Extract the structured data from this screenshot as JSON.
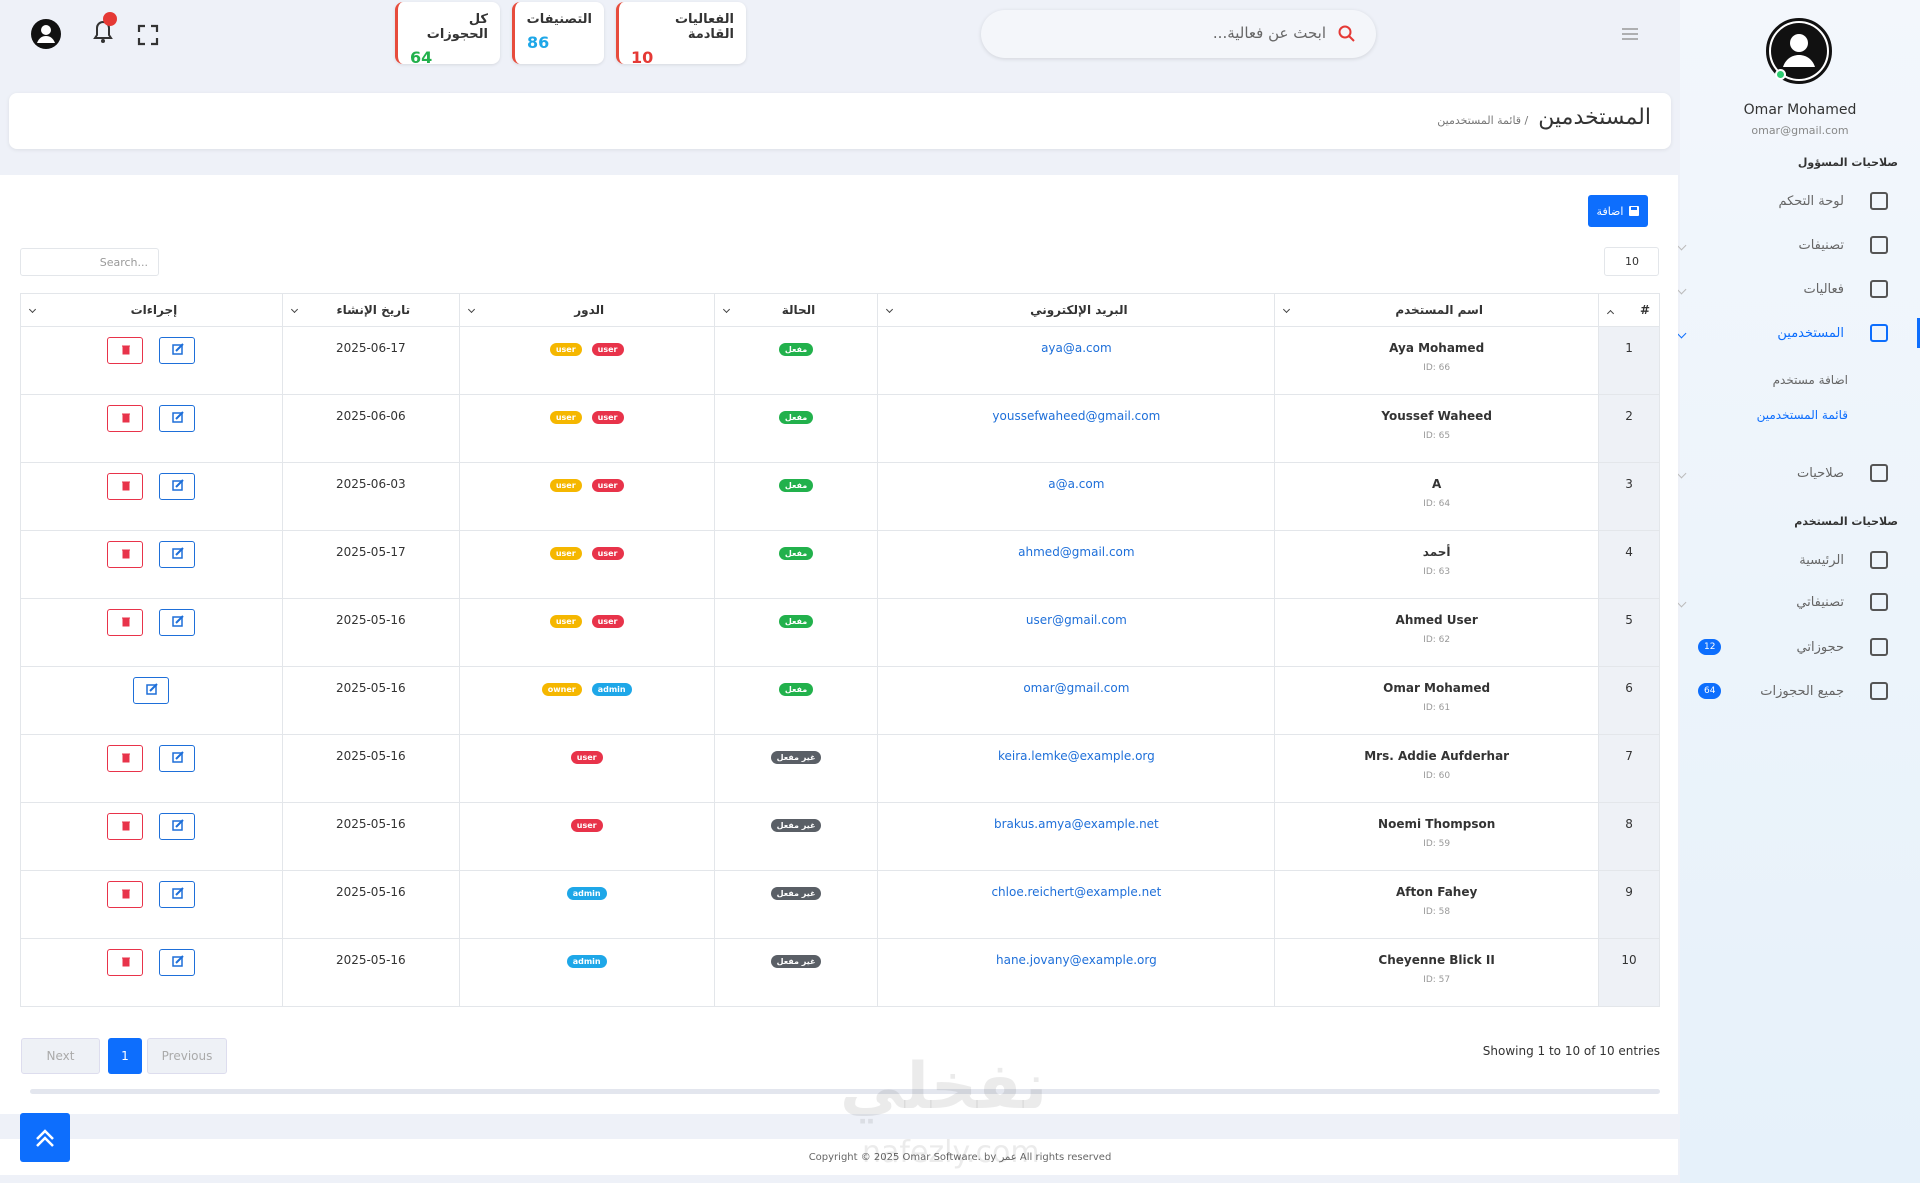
{
  "topbar": {
    "search_placeholder": "ابحث عن فعالية...",
    "stats": [
      {
        "label": "الفعاليات القادمة",
        "value": 10,
        "color": "#e53935"
      },
      {
        "label": "التصنيفات",
        "value": 86,
        "color": "#1ea7e8"
      },
      {
        "label": "كل الحجوزات",
        "value": 64,
        "color": "#22b14c"
      }
    ]
  },
  "header": {
    "title": "المستخدمين",
    "breadcrumb": "/ قائمة المستخدمين"
  },
  "sidebar": {
    "name": "Omar Mohamed",
    "email": "omar@gmail.com",
    "sections": [
      {
        "title": "صلاحيات المسؤول",
        "items": [
          {
            "label": "لوحة التحكم"
          },
          {
            "label": "تصنيفات",
            "chevron": true
          },
          {
            "label": "فعاليات",
            "chevron": true
          },
          {
            "label": "المستخدمين",
            "chevron": true,
            "active": true,
            "children": [
              {
                "label": "اضافة مستخدم"
              },
              {
                "label": "قائمة المستخدمين",
                "active": true
              }
            ]
          },
          {
            "label": "صلاحيات",
            "chevron": true
          }
        ]
      },
      {
        "title": "صلاحيات المستخدم",
        "items": [
          {
            "label": "الرئيسية"
          },
          {
            "label": "تصنيفاتي",
            "chevron": true
          },
          {
            "label": "حجوزاتي",
            "badge": 12
          },
          {
            "label": "جميع الحجوزات",
            "badge": 64
          }
        ]
      }
    ]
  },
  "content": {
    "add_button": "اضافة",
    "page_length": 10,
    "search_placeholder": "Search...",
    "columns": [
      "#",
      "اسم المستخدم",
      "البريد الإلكتروني",
      "الحالة",
      "الدور",
      "تاريخ الإنشاء",
      "إجراءات"
    ],
    "rows": [
      {
        "n": 1,
        "name": "Aya Mohamed",
        "id": "ID: 66",
        "email": "aya@a.com",
        "status": "مفعل",
        "active": true,
        "roles": [
          {
            "label": "user",
            "color": "#e8334a"
          },
          {
            "label": "user",
            "color": "#f5b700"
          }
        ],
        "date": "2025-06-17",
        "delete": true
      },
      {
        "n": 2,
        "name": "Youssef Waheed",
        "id": "ID: 65",
        "email": "youssefwaheed@gmail.com",
        "status": "مفعل",
        "active": true,
        "roles": [
          {
            "label": "user",
            "color": "#e8334a"
          },
          {
            "label": "user",
            "color": "#f5b700"
          }
        ],
        "date": "2025-06-06",
        "delete": true
      },
      {
        "n": 3,
        "name": "A",
        "id": "ID: 64",
        "email": "a@a.com",
        "status": "مفعل",
        "active": true,
        "roles": [
          {
            "label": "user",
            "color": "#e8334a"
          },
          {
            "label": "user",
            "color": "#f5b700"
          }
        ],
        "date": "2025-06-03",
        "delete": true
      },
      {
        "n": 4,
        "name": "أحمد",
        "id": "ID: 63",
        "email": "ahmed@gmail.com",
        "status": "مفعل",
        "active": true,
        "roles": [
          {
            "label": "user",
            "color": "#e8334a"
          },
          {
            "label": "user",
            "color": "#f5b700"
          }
        ],
        "date": "2025-05-17",
        "delete": true
      },
      {
        "n": 5,
        "name": "Ahmed User",
        "id": "ID: 62",
        "email": "user@gmail.com",
        "status": "مفعل",
        "active": true,
        "roles": [
          {
            "label": "user",
            "color": "#e8334a"
          },
          {
            "label": "user",
            "color": "#f5b700"
          }
        ],
        "date": "2025-05-16",
        "delete": true
      },
      {
        "n": 6,
        "name": "Omar Mohamed",
        "id": "ID: 61",
        "email": "omar@gmail.com",
        "status": "مفعل",
        "active": true,
        "roles": [
          {
            "label": "admin",
            "color": "#1ea7e8"
          },
          {
            "label": "owner",
            "color": "#f5b700"
          }
        ],
        "date": "2025-05-16",
        "delete": false
      },
      {
        "n": 7,
        "name": "Mrs. Addie Aufderhar",
        "id": "ID: 60",
        "email": "keira.lemke@example.org",
        "status": "غير مفعل",
        "active": false,
        "roles": [
          {
            "label": "user",
            "color": "#e8334a"
          }
        ],
        "date": "2025-05-16",
        "delete": true
      },
      {
        "n": 8,
        "name": "Noemi Thompson",
        "id": "ID: 59",
        "email": "brakus.amya@example.net",
        "status": "غير مفعل",
        "active": false,
        "roles": [
          {
            "label": "user",
            "color": "#e8334a"
          }
        ],
        "date": "2025-05-16",
        "delete": true
      },
      {
        "n": 9,
        "name": "Afton Fahey",
        "id": "ID: 58",
        "email": "chloe.reichert@example.net",
        "status": "غير مفعل",
        "active": false,
        "roles": [
          {
            "label": "admin",
            "color": "#1ea7e8"
          }
        ],
        "date": "2025-05-16",
        "delete": true
      },
      {
        "n": 10,
        "name": "Cheyenne Blick II",
        "id": "ID: 57",
        "email": "hane.jovany@example.org",
        "status": "غير مفعل",
        "active": false,
        "roles": [
          {
            "label": "admin",
            "color": "#1ea7e8"
          }
        ],
        "date": "2025-05-16",
        "delete": true
      }
    ],
    "info": "Showing 1 to 10 of 10 entries",
    "pagination": {
      "previous": "Previous",
      "page": 1,
      "next": "Next"
    }
  },
  "footer": "Copyright © 2025 Omar Software. by عمر All rights reserved",
  "watermark": {
    "ar": "نفخلي",
    "en": "nafezly.com"
  }
}
